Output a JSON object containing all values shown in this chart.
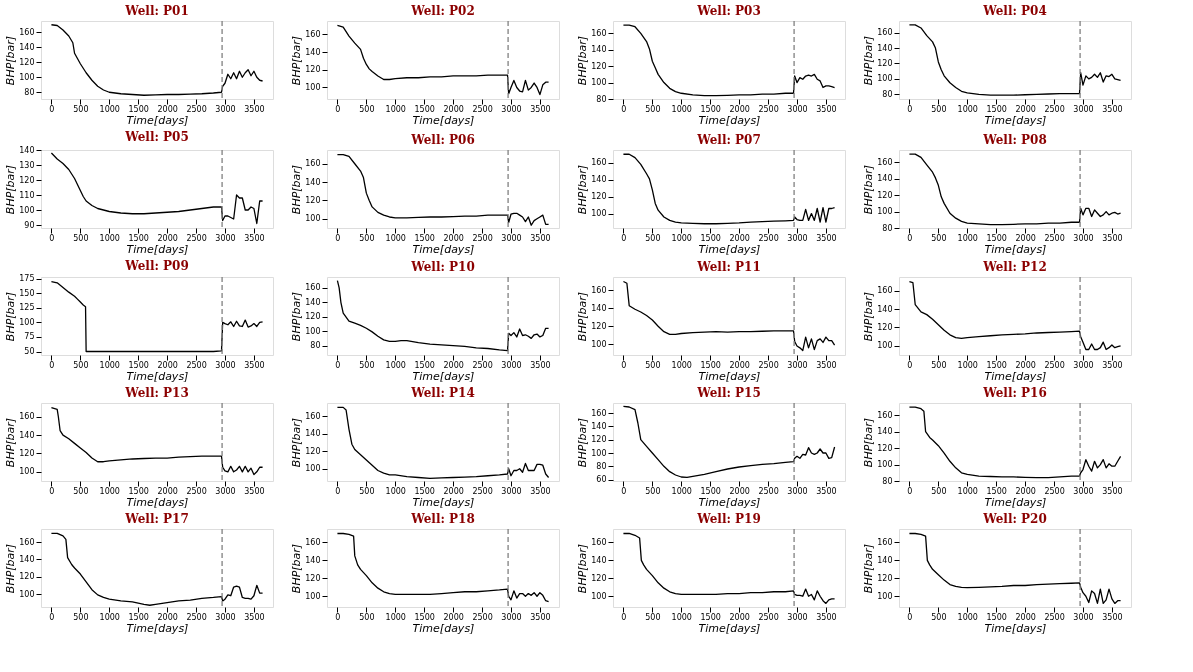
{
  "chart_data": [
    {
      "type": "line",
      "title": "Well: P01",
      "xlabel": "Time[days]",
      "ylabel": "BHP[bar]",
      "color": "#000000",
      "xlim": [
        -180,
        3830
      ],
      "xticks": [
        0,
        500,
        1000,
        1500,
        2000,
        2500,
        3000,
        3500
      ],
      "ylim": [
        71,
        175
      ],
      "yticks": [
        80,
        100,
        120,
        140,
        160
      ],
      "ref_lines": [
        {
          "axis": "x",
          "value": 2950,
          "color": "#808080",
          "line_style": "dashed"
        }
      ],
      "x": [
        0,
        100,
        200,
        300,
        370,
        400,
        450,
        500,
        550,
        600,
        700,
        800,
        900,
        1000,
        1200,
        1400,
        1600,
        1800,
        2000,
        2200,
        2400,
        2600,
        2800,
        2940,
        2960,
        3000,
        3050,
        3100,
        3150,
        3200,
        3250,
        3300,
        3350,
        3400,
        3450,
        3500,
        3550,
        3600,
        3650
      ],
      "values": [
        170,
        169,
        163,
        155,
        146,
        132,
        125,
        118,
        112,
        106,
        96,
        88,
        83,
        80,
        78,
        77,
        76,
        76.5,
        77,
        77,
        77.5,
        78,
        79,
        80,
        88,
        92,
        104,
        98,
        106,
        98,
        108,
        100,
        106,
        110,
        102,
        108,
        100,
        96,
        95
      ]
    },
    {
      "type": "line",
      "title": "Well: P02",
      "xlabel": "Time[days]",
      "ylabel": "BHP[bar]",
      "color": "#000000",
      "xlim": [
        -180,
        3830
      ],
      "xticks": [
        0,
        500,
        1000,
        1500,
        2000,
        2500,
        3000,
        3500
      ],
      "ylim": [
        87,
        175
      ],
      "yticks": [
        100,
        120,
        140,
        160
      ],
      "ref_lines": [
        {
          "axis": "x",
          "value": 2950,
          "color": "#808080",
          "line_style": "dashed"
        }
      ],
      "x": [
        0,
        100,
        200,
        300,
        400,
        450,
        500,
        550,
        600,
        700,
        800,
        900,
        1000,
        1200,
        1400,
        1600,
        1800,
        2000,
        2200,
        2400,
        2600,
        2800,
        2940,
        2960,
        3000,
        3050,
        3100,
        3150,
        3200,
        3250,
        3300,
        3350,
        3400,
        3450,
        3500,
        3550,
        3600,
        3650
      ],
      "values": [
        170,
        168,
        158,
        150,
        143,
        133,
        126,
        121,
        118,
        113,
        109,
        109,
        110,
        111,
        111,
        112,
        112,
        113,
        113,
        113,
        114,
        114,
        114,
        93,
        100,
        108,
        100,
        96,
        95,
        108,
        97,
        100,
        105,
        100,
        92,
        103,
        106,
        106
      ]
    },
    {
      "type": "line",
      "title": "Well: P03",
      "xlabel": "Time[days]",
      "ylabel": "BHP[bar]",
      "color": "#000000",
      "xlim": [
        -180,
        3830
      ],
      "xticks": [
        0,
        500,
        1000,
        1500,
        2000,
        2500,
        3000,
        3500
      ],
      "ylim": [
        80,
        175
      ],
      "yticks": [
        80,
        100,
        120,
        140,
        160
      ],
      "ref_lines": [
        {
          "axis": "x",
          "value": 2950,
          "color": "#808080",
          "line_style": "dashed"
        }
      ],
      "x": [
        0,
        100,
        200,
        300,
        400,
        450,
        500,
        550,
        600,
        700,
        800,
        900,
        1000,
        1200,
        1400,
        1600,
        1800,
        2000,
        2200,
        2400,
        2600,
        2800,
        2940,
        2960,
        3000,
        3050,
        3100,
        3150,
        3200,
        3250,
        3300,
        3350,
        3400,
        3450,
        3500,
        3550,
        3600,
        3650
      ],
      "values": [
        170,
        170,
        168,
        160,
        150,
        141,
        126,
        118,
        110,
        100,
        93,
        89,
        87,
        85,
        84,
        84,
        84.5,
        85,
        85,
        86,
        86,
        87,
        87,
        108,
        100,
        106,
        104,
        108,
        109,
        108,
        110,
        104,
        102,
        94,
        96,
        96,
        95,
        94
      ]
    },
    {
      "type": "line",
      "title": "Well: P04",
      "xlabel": "Time[days]",
      "ylabel": "BHP[bar]",
      "color": "#000000",
      "xlim": [
        -180,
        3830
      ],
      "xticks": [
        0,
        500,
        1000,
        1500,
        2000,
        2500,
        3000,
        3500
      ],
      "ylim": [
        74,
        175
      ],
      "yticks": [
        80,
        100,
        120,
        140,
        160
      ],
      "ref_lines": [
        {
          "axis": "x",
          "value": 2950,
          "color": "#808080",
          "line_style": "dashed"
        }
      ],
      "x": [
        0,
        100,
        200,
        300,
        400,
        450,
        500,
        550,
        600,
        700,
        800,
        900,
        1000,
        1200,
        1400,
        1600,
        1800,
        2000,
        2200,
        2400,
        2600,
        2800,
        2940,
        2960,
        3000,
        3050,
        3100,
        3150,
        3200,
        3250,
        3300,
        3350,
        3400,
        3450,
        3500,
        3550,
        3600,
        3650
      ],
      "values": [
        170,
        170,
        166,
        156,
        148,
        140,
        122,
        112,
        104,
        95,
        89,
        84,
        82,
        80,
        79,
        79,
        79,
        79.5,
        80,
        80.5,
        81,
        81,
        81,
        108,
        92,
        104,
        100,
        102,
        106,
        102,
        108,
        96,
        104,
        103,
        106,
        100,
        99,
        98
      ]
    },
    {
      "type": "line",
      "title": "Well: P05",
      "xlabel": "Time[days]",
      "ylabel": "BHP[bar]",
      "color": "#000000",
      "xlim": [
        -180,
        3830
      ],
      "xticks": [
        0,
        500,
        1000,
        1500,
        2000,
        2500,
        3000,
        3500
      ],
      "ylim": [
        88,
        140
      ],
      "yticks": [
        90,
        100,
        110,
        120,
        130,
        140
      ],
      "ref_lines": [
        {
          "axis": "x",
          "value": 2950,
          "color": "#808080",
          "line_style": "dashed"
        }
      ],
      "x": [
        0,
        100,
        200,
        300,
        400,
        450,
        500,
        550,
        600,
        700,
        800,
        900,
        1000,
        1200,
        1400,
        1600,
        1800,
        2000,
        2200,
        2400,
        2600,
        2800,
        2940,
        2960,
        3000,
        3050,
        3100,
        3150,
        3200,
        3250,
        3300,
        3350,
        3400,
        3450,
        3500,
        3550,
        3600,
        3650
      ],
      "values": [
        138,
        134,
        131,
        127,
        121,
        117,
        113,
        109,
        106,
        103,
        101,
        100,
        99,
        98,
        97.5,
        97.5,
        98,
        98.5,
        99,
        100,
        101,
        102,
        102,
        93,
        96,
        96,
        95,
        94,
        110,
        108,
        108,
        100,
        100,
        102,
        101,
        91,
        106,
        106
      ]
    },
    {
      "type": "line",
      "title": "Well: P06",
      "xlabel": "Time[days]",
      "ylabel": "BHP[bar]",
      "color": "#000000",
      "xlim": [
        -180,
        3830
      ],
      "xticks": [
        0,
        500,
        1000,
        1500,
        2000,
        2500,
        3000,
        3500
      ],
      "ylim": [
        90,
        175
      ],
      "yticks": [
        100,
        120,
        140,
        160
      ],
      "ref_lines": [
        {
          "axis": "x",
          "value": 2950,
          "color": "#808080",
          "line_style": "dashed"
        }
      ],
      "x": [
        0,
        100,
        200,
        300,
        400,
        450,
        500,
        550,
        600,
        700,
        800,
        900,
        1000,
        1200,
        1400,
        1600,
        1800,
        2000,
        2200,
        2400,
        2600,
        2800,
        2940,
        2960,
        3000,
        3050,
        3100,
        3150,
        3200,
        3250,
        3300,
        3350,
        3400,
        3450,
        3500,
        3550,
        3600,
        3650
      ],
      "values": [
        170,
        170,
        168,
        160,
        152,
        145,
        128,
        120,
        113,
        107,
        104,
        102,
        101,
        101,
        101.5,
        102,
        102,
        102.5,
        103,
        103,
        104,
        104,
        104,
        96,
        105,
        106,
        106,
        104,
        102,
        97,
        102,
        93,
        98,
        100,
        102,
        104,
        94,
        94
      ]
    },
    {
      "type": "line",
      "title": "Well: P07",
      "xlabel": "Time[days]",
      "ylabel": "BHP[bar]",
      "color": "#000000",
      "xlim": [
        -180,
        3830
      ],
      "xticks": [
        0,
        500,
        1000,
        1500,
        2000,
        2500,
        3000,
        3500
      ],
      "ylim": [
        83,
        175
      ],
      "yticks": [
        100,
        120,
        140,
        160
      ],
      "ref_lines": [
        {
          "axis": "x",
          "value": 2950,
          "color": "#808080",
          "line_style": "dashed"
        }
      ],
      "x": [
        0,
        100,
        200,
        300,
        400,
        450,
        500,
        550,
        600,
        700,
        800,
        900,
        1000,
        1200,
        1400,
        1600,
        1800,
        2000,
        2200,
        2400,
        2600,
        2800,
        2940,
        2960,
        3000,
        3050,
        3100,
        3150,
        3200,
        3250,
        3300,
        3350,
        3400,
        3450,
        3500,
        3550,
        3600,
        3650
      ],
      "values": [
        170,
        170,
        166,
        158,
        147,
        141,
        128,
        112,
        104,
        96,
        92,
        90,
        89,
        88.5,
        88,
        88,
        88.5,
        89,
        90,
        90.5,
        91,
        91.5,
        92,
        96,
        93,
        92,
        92,
        105,
        92,
        100,
        92,
        106,
        90,
        107,
        90,
        106,
        106,
        107
      ]
    },
    {
      "type": "line",
      "title": "Well: P08",
      "xlabel": "Time[days]",
      "ylabel": "BHP[bar]",
      "color": "#000000",
      "xlim": [
        -180,
        3830
      ],
      "xticks": [
        0,
        500,
        1000,
        1500,
        2000,
        2500,
        3000,
        3500
      ],
      "ylim": [
        80,
        175
      ],
      "yticks": [
        80,
        100,
        120,
        140,
        160
      ],
      "ref_lines": [
        {
          "axis": "x",
          "value": 2950,
          "color": "#808080",
          "line_style": "dashed"
        }
      ],
      "x": [
        0,
        100,
        200,
        300,
        400,
        450,
        500,
        550,
        600,
        700,
        800,
        900,
        1000,
        1200,
        1400,
        1600,
        1800,
        2000,
        2200,
        2400,
        2600,
        2800,
        2940,
        2960,
        3000,
        3050,
        3100,
        3150,
        3200,
        3250,
        3300,
        3350,
        3400,
        3450,
        3500,
        3550,
        3600,
        3650
      ],
      "values": [
        170,
        170,
        166,
        157,
        148,
        141,
        132,
        118,
        110,
        98,
        92,
        88,
        86,
        85,
        84,
        84,
        84.5,
        85,
        85,
        86,
        86,
        87,
        87,
        104,
        96,
        104,
        104,
        94,
        102,
        98,
        94,
        96,
        100,
        96,
        98,
        99,
        97,
        98
      ]
    },
    {
      "type": "line",
      "title": "Well: P09",
      "xlabel": "Time[days]",
      "ylabel": "BHP[bar]",
      "color": "#000000",
      "xlim": [
        -180,
        3830
      ],
      "xticks": [
        0,
        500,
        1000,
        1500,
        2000,
        2500,
        3000,
        3500
      ],
      "ylim": [
        44,
        178
      ],
      "yticks": [
        50,
        75,
        100,
        125,
        150,
        175
      ],
      "ref_lines": [
        {
          "axis": "x",
          "value": 2950,
          "color": "#808080",
          "line_style": "dashed"
        }
      ],
      "x": [
        0,
        100,
        200,
        300,
        400,
        450,
        500,
        550,
        590,
        600,
        700,
        800,
        1000,
        1200,
        1400,
        1600,
        1800,
        2000,
        2200,
        2400,
        2600,
        2800,
        2940,
        2960,
        3000,
        3050,
        3100,
        3150,
        3200,
        3250,
        3300,
        3350,
        3400,
        3450,
        3500,
        3550,
        3600,
        3650
      ],
      "values": [
        170,
        168,
        160,
        152,
        145,
        140,
        135,
        130,
        127,
        50,
        50,
        50,
        50,
        50,
        50,
        50,
        50,
        50,
        50,
        50,
        50,
        50,
        51,
        100,
        98,
        96,
        101,
        93,
        102,
        94,
        93,
        104,
        92,
        94,
        98,
        93,
        100,
        101
      ]
    },
    {
      "type": "line",
      "title": "Well: P10",
      "xlabel": "Time[days]",
      "ylabel": "BHP[bar]",
      "color": "#000000",
      "xlim": [
        -180,
        3830
      ],
      "xticks": [
        0,
        500,
        1000,
        1500,
        2000,
        2500,
        3000,
        3500
      ],
      "ylim": [
        67,
        175
      ],
      "yticks": [
        80,
        100,
        120,
        140,
        160
      ],
      "ref_lines": [
        {
          "axis": "x",
          "value": 2950,
          "color": "#808080",
          "line_style": "dashed"
        }
      ],
      "x": [
        0,
        30,
        60,
        100,
        200,
        300,
        400,
        500,
        600,
        700,
        800,
        900,
        1000,
        1100,
        1200,
        1400,
        1600,
        1800,
        2000,
        2200,
        2400,
        2600,
        2800,
        2940,
        2960,
        3000,
        3050,
        3100,
        3150,
        3200,
        3250,
        3300,
        3350,
        3400,
        3450,
        3500,
        3550,
        3600,
        3650
      ],
      "values": [
        170,
        160,
        140,
        125,
        114,
        111,
        108,
        104,
        99,
        93,
        88,
        86,
        86,
        87,
        87,
        84,
        82,
        81,
        80,
        79,
        77,
        76,
        74,
        73,
        97,
        94,
        98,
        92,
        103,
        94,
        95,
        93,
        90,
        95,
        96,
        92,
        94,
        104,
        104
      ]
    },
    {
      "type": "line",
      "title": "Well: P11",
      "xlabel": "Time[days]",
      "ylabel": "BHP[bar]",
      "color": "#000000",
      "xlim": [
        -180,
        3830
      ],
      "xticks": [
        0,
        500,
        1000,
        1500,
        2000,
        2500,
        3000,
        3500
      ],
      "ylim": [
        88,
        175
      ],
      "yticks": [
        100,
        120,
        140,
        160
      ],
      "ref_lines": [
        {
          "axis": "x",
          "value": 2950,
          "color": "#808080",
          "line_style": "dashed"
        }
      ],
      "x": [
        0,
        60,
        100,
        200,
        300,
        400,
        500,
        600,
        700,
        800,
        900,
        1000,
        1200,
        1400,
        1600,
        1800,
        2000,
        2200,
        2400,
        2600,
        2800,
        2940,
        2960,
        3000,
        3050,
        3100,
        3150,
        3200,
        3250,
        3300,
        3350,
        3400,
        3450,
        3500,
        3550,
        3600,
        3650
      ],
      "values": [
        170,
        168,
        143,
        139,
        136,
        132,
        127,
        120,
        114,
        111,
        111,
        112,
        113,
        113.5,
        114,
        113.5,
        114,
        114,
        114.5,
        115,
        115,
        115,
        103,
        98,
        96,
        93,
        108,
        96,
        106,
        94,
        104,
        106,
        102,
        108,
        104,
        104,
        99
      ]
    },
    {
      "type": "line",
      "title": "Well: P12",
      "xlabel": "Time[days]",
      "ylabel": "BHP[bar]",
      "color": "#000000",
      "xlim": [
        -180,
        3830
      ],
      "xticks": [
        0,
        500,
        1000,
        1500,
        2000,
        2500,
        3000,
        3500
      ],
      "ylim": [
        90,
        175
      ],
      "yticks": [
        100,
        120,
        140,
        160
      ],
      "ref_lines": [
        {
          "axis": "x",
          "value": 2950,
          "color": "#808080",
          "line_style": "dashed"
        }
      ],
      "x": [
        0,
        60,
        100,
        200,
        300,
        400,
        500,
        600,
        700,
        800,
        900,
        1000,
        1200,
        1400,
        1600,
        1800,
        2000,
        2200,
        2400,
        2600,
        2800,
        2940,
        2960,
        3000,
        3050,
        3100,
        3150,
        3200,
        3250,
        3300,
        3350,
        3400,
        3450,
        3500,
        3550,
        3600,
        3650
      ],
      "values": [
        170,
        169,
        145,
        137,
        134,
        129,
        123,
        117,
        112,
        109,
        108,
        109,
        110,
        111,
        112,
        112.5,
        113,
        114,
        114.5,
        115,
        115.5,
        116,
        110,
        104,
        96,
        96,
        102,
        96,
        96,
        98,
        104,
        96,
        98,
        101,
        98,
        99,
        100
      ]
    },
    {
      "type": "line",
      "title": "Well: P13",
      "xlabel": "Time[days]",
      "ylabel": "BHP[bar]",
      "color": "#000000",
      "xlim": [
        -180,
        3830
      ],
      "xticks": [
        0,
        500,
        1000,
        1500,
        2000,
        2500,
        3000,
        3500
      ],
      "ylim": [
        90,
        175
      ],
      "yticks": [
        100,
        120,
        140,
        160
      ],
      "ref_lines": [
        {
          "axis": "x",
          "value": 2950,
          "color": "#808080",
          "line_style": "dashed"
        }
      ],
      "x": [
        0,
        100,
        120,
        150,
        200,
        300,
        400,
        500,
        600,
        700,
        800,
        900,
        1000,
        1200,
        1400,
        1600,
        1800,
        2000,
        2200,
        2400,
        2600,
        2800,
        2940,
        2960,
        3000,
        3050,
        3100,
        3150,
        3200,
        3250,
        3300,
        3350,
        3400,
        3450,
        3500,
        3550,
        3600,
        3650
      ],
      "values": [
        170,
        168,
        160,
        145,
        140,
        136,
        131,
        126,
        121,
        115,
        111,
        111,
        112,
        113,
        114,
        114.5,
        115,
        115,
        116,
        116.5,
        117,
        117,
        117,
        105,
        101,
        100,
        106,
        100,
        102,
        106,
        100,
        106,
        100,
        104,
        97,
        100,
        105,
        105
      ]
    },
    {
      "type": "line",
      "title": "Well: P14",
      "xlabel": "Time[days]",
      "ylabel": "BHP[bar]",
      "color": "#000000",
      "xlim": [
        -180,
        3830
      ],
      "xticks": [
        0,
        500,
        1000,
        1500,
        2000,
        2500,
        3000,
        3500
      ],
      "ylim": [
        86,
        175
      ],
      "yticks": [
        100,
        120,
        140,
        160
      ],
      "ref_lines": [
        {
          "axis": "x",
          "value": 2950,
          "color": "#808080",
          "line_style": "dashed"
        }
      ],
      "x": [
        0,
        100,
        150,
        200,
        250,
        300,
        400,
        500,
        600,
        700,
        800,
        900,
        1000,
        1200,
        1400,
        1600,
        1800,
        2000,
        2200,
        2400,
        2600,
        2800,
        2940,
        2960,
        3000,
        3050,
        3100,
        3150,
        3200,
        3250,
        3300,
        3350,
        3400,
        3450,
        3500,
        3550,
        3600,
        3650
      ],
      "values": [
        170,
        170,
        167,
        145,
        128,
        122,
        116,
        110,
        104,
        98,
        95,
        93,
        93,
        91,
        90,
        89,
        89.5,
        90,
        90.5,
        91,
        92,
        93,
        94,
        100,
        92,
        98,
        98,
        100,
        96,
        106,
        98,
        98,
        98,
        105,
        105,
        104,
        94,
        90
      ]
    },
    {
      "type": "line",
      "title": "Well: P15",
      "xlabel": "Time[days]",
      "ylabel": "BHP[bar]",
      "color": "#000000",
      "xlim": [
        -180,
        3830
      ],
      "xticks": [
        0,
        500,
        1000,
        1500,
        2000,
        2500,
        3000,
        3500
      ],
      "ylim": [
        58,
        175
      ],
      "yticks": [
        60,
        80,
        100,
        120,
        140,
        160
      ],
      "ref_lines": [
        {
          "axis": "x",
          "value": 2950,
          "color": "#808080",
          "line_style": "dashed"
        }
      ],
      "x": [
        0,
        100,
        200,
        250,
        300,
        400,
        500,
        600,
        700,
        800,
        900,
        1000,
        1100,
        1200,
        1400,
        1600,
        1800,
        2000,
        2200,
        2400,
        2600,
        2800,
        2940,
        2960,
        3000,
        3050,
        3100,
        3150,
        3200,
        3250,
        3300,
        3350,
        3400,
        3450,
        3500,
        3550,
        3600,
        3650
      ],
      "values": [
        170,
        169,
        165,
        145,
        120,
        110,
        100,
        90,
        80,
        72,
        67,
        64,
        63.5,
        65,
        68,
        72,
        76,
        79,
        81,
        83,
        84,
        86,
        87,
        92,
        95,
        92,
        98,
        97,
        108,
        100,
        98,
        100,
        106,
        100,
        100,
        92,
        93,
        109
      ]
    },
    {
      "type": "line",
      "title": "Well: P16",
      "xlabel": "Time[days]",
      "ylabel": "BHP[bar]",
      "color": "#000000",
      "xlim": [
        -180,
        3830
      ],
      "xticks": [
        0,
        500,
        1000,
        1500,
        2000,
        2500,
        3000,
        3500
      ],
      "ylim": [
        80,
        175
      ],
      "yticks": [
        80,
        100,
        120,
        140,
        160
      ],
      "ref_lines": [
        {
          "axis": "x",
          "value": 2950,
          "color": "#808080",
          "line_style": "dashed"
        }
      ],
      "x": [
        0,
        100,
        200,
        250,
        280,
        350,
        400,
        500,
        600,
        700,
        800,
        900,
        1000,
        1200,
        1400,
        1600,
        1800,
        2000,
        2200,
        2400,
        2600,
        2800,
        2940,
        2960,
        3000,
        3050,
        3100,
        3150,
        3200,
        3250,
        3300,
        3350,
        3400,
        3450,
        3500,
        3550,
        3600,
        3650
      ],
      "values": [
        170,
        170,
        168,
        165,
        140,
        133,
        130,
        123,
        114,
        104,
        96,
        90,
        88,
        86,
        85.5,
        85,
        85,
        84.5,
        84,
        84,
        85,
        86,
        86,
        90,
        94,
        106,
        98,
        92,
        104,
        96,
        100,
        106,
        96,
        101,
        98,
        98,
        104,
        110
      ]
    },
    {
      "type": "line",
      "title": "Well: P17",
      "xlabel": "Time[days]",
      "ylabel": "BHP[bar]",
      "color": "#000000",
      "xlim": [
        -180,
        3830
      ],
      "xticks": [
        0,
        500,
        1000,
        1500,
        2000,
        2500,
        3000,
        3500
      ],
      "ylim": [
        85,
        175
      ],
      "yticks": [
        100,
        120,
        140,
        160
      ],
      "ref_lines": [
        {
          "axis": "x",
          "value": 2950,
          "color": "#808080",
          "line_style": "dashed"
        }
      ],
      "x": [
        0,
        100,
        200,
        250,
        280,
        350,
        400,
        500,
        600,
        700,
        800,
        900,
        1000,
        1200,
        1400,
        1600,
        1700,
        1800,
        2000,
        2200,
        2400,
        2600,
        2800,
        2940,
        2960,
        3000,
        3050,
        3100,
        3150,
        3200,
        3250,
        3300,
        3350,
        3400,
        3450,
        3500,
        3550,
        3600,
        3650
      ],
      "values": [
        170,
        170,
        167,
        163,
        142,
        134,
        130,
        123,
        114,
        105,
        99,
        96,
        94,
        92,
        91,
        88,
        87,
        88,
        90,
        92,
        93,
        95,
        96,
        97,
        92,
        94,
        99,
        98,
        108,
        109,
        108,
        96,
        95,
        95,
        94,
        98,
        110,
        101,
        101
      ]
    },
    {
      "type": "line",
      "title": "Well: P18",
      "xlabel": "Time[days]",
      "ylabel": "BHP[bar]",
      "color": "#000000",
      "xlim": [
        -180,
        3830
      ],
      "xticks": [
        0,
        500,
        1000,
        1500,
        2000,
        2500,
        3000,
        3500
      ],
      "ylim": [
        88,
        175
      ],
      "yticks": [
        100,
        120,
        140,
        160
      ],
      "ref_lines": [
        {
          "axis": "x",
          "value": 2950,
          "color": "#808080",
          "line_style": "dashed"
        }
      ],
      "x": [
        0,
        100,
        200,
        280,
        300,
        350,
        400,
        500,
        600,
        700,
        800,
        900,
        1000,
        1200,
        1400,
        1600,
        1800,
        2000,
        2200,
        2400,
        2600,
        2800,
        2940,
        2960,
        3000,
        3050,
        3100,
        3150,
        3200,
        3250,
        3300,
        3350,
        3400,
        3450,
        3500,
        3550,
        3600,
        3650
      ],
      "values": [
        170,
        170,
        169,
        167,
        145,
        135,
        130,
        123,
        115,
        109,
        105,
        103,
        102,
        102,
        102,
        102,
        103,
        104,
        105,
        105,
        106,
        107,
        108,
        100,
        96,
        106,
        98,
        103,
        103,
        100,
        103,
        101,
        104,
        100,
        104,
        101,
        95,
        94
      ]
    },
    {
      "type": "line",
      "title": "Well: P19",
      "xlabel": "Time[days]",
      "ylabel": "BHP[bar]",
      "color": "#000000",
      "xlim": [
        -180,
        3830
      ],
      "xticks": [
        0,
        500,
        1000,
        1500,
        2000,
        2500,
        3000,
        3500
      ],
      "ylim": [
        88,
        175
      ],
      "yticks": [
        100,
        120,
        140,
        160
      ],
      "ref_lines": [
        {
          "axis": "x",
          "value": 2950,
          "color": "#808080",
          "line_style": "dashed"
        }
      ],
      "x": [
        0,
        100,
        200,
        280,
        310,
        350,
        400,
        500,
        600,
        700,
        800,
        900,
        1000,
        1200,
        1400,
        1600,
        1800,
        2000,
        2200,
        2400,
        2600,
        2800,
        2940,
        2960,
        3000,
        3050,
        3100,
        3150,
        3200,
        3250,
        3300,
        3350,
        3400,
        3450,
        3500,
        3550,
        3600,
        3650
      ],
      "values": [
        170,
        170,
        168,
        165,
        140,
        135,
        130,
        123,
        115,
        109,
        105,
        103,
        102,
        102,
        102,
        102,
        103,
        103,
        104,
        104,
        105,
        105,
        106,
        102,
        101,
        101,
        100,
        108,
        100,
        102,
        96,
        106,
        100,
        95,
        92,
        96,
        97,
        97
      ]
    },
    {
      "type": "line",
      "title": "Well: P20",
      "xlabel": "Time[days]",
      "ylabel": "BHP[bar]",
      "color": "#000000",
      "xlim": [
        -180,
        3830
      ],
      "xticks": [
        0,
        500,
        1000,
        1500,
        2000,
        2500,
        3000,
        3500
      ],
      "ylim": [
        88,
        175
      ],
      "yticks": [
        100,
        120,
        140,
        160
      ],
      "ref_lines": [
        {
          "axis": "x",
          "value": 2950,
          "color": "#808080",
          "line_style": "dashed"
        }
      ],
      "x": [
        0,
        100,
        200,
        280,
        310,
        350,
        400,
        500,
        600,
        700,
        800,
        900,
        1000,
        1200,
        1400,
        1600,
        1800,
        2000,
        2200,
        2400,
        2600,
        2800,
        2940,
        2960,
        3000,
        3050,
        3100,
        3150,
        3200,
        3250,
        3300,
        3350,
        3400,
        3450,
        3500,
        3550,
        3600,
        3650
      ],
      "values": [
        170,
        170,
        169,
        167,
        140,
        135,
        130,
        124,
        118,
        113,
        111,
        110,
        109.5,
        110,
        110.5,
        111,
        112,
        112,
        113,
        113.5,
        114,
        114.5,
        115,
        110,
        104,
        100,
        93,
        106,
        103,
        92,
        108,
        92,
        96,
        108,
        97,
        92,
        95,
        95
      ]
    }
  ]
}
